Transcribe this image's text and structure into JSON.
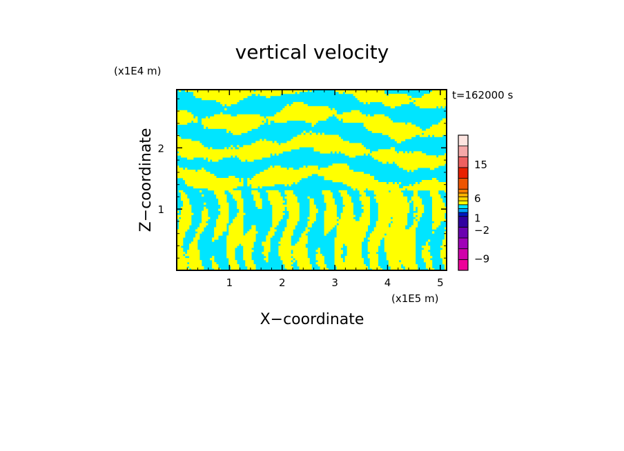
{
  "chart_data": {
    "type": "heatmap",
    "title": "vertical velocity",
    "xlabel": "X−coordinate",
    "ylabel": "Z−coordinate",
    "x_scale_label": "(x1E5 m)",
    "y_scale_label": "(x1E4 m)",
    "time_label": "t=162000 s",
    "xlim": [
      0,
      5.12
    ],
    "ylim": [
      0,
      2.95
    ],
    "x_ticks": [
      {
        "value": 1,
        "label": "1"
      },
      {
        "value": 2,
        "label": "2"
      },
      {
        "value": 3,
        "label": "3"
      },
      {
        "value": 4,
        "label": "4"
      },
      {
        "value": 5,
        "label": "5"
      }
    ],
    "y_ticks": [
      {
        "value": 1,
        "label": "1"
      },
      {
        "value": 2,
        "label": "2"
      }
    ],
    "field_colors": {
      "positive": "#ffff00",
      "negative": "#00e5ff"
    },
    "colorbar": {
      "levels": [
        {
          "color": "#ee0099"
        },
        {
          "color": "#d000aa"
        },
        {
          "color": "#a000b8"
        },
        {
          "color": "#6a00b0"
        },
        {
          "color": "#3000a0"
        },
        {
          "color": "#0018c0"
        },
        {
          "color": "#00a0ff"
        },
        {
          "color": "#00e5ff"
        },
        {
          "color": "#ffff00"
        },
        {
          "color": "#ffd400"
        },
        {
          "color": "#ffb000"
        },
        {
          "color": "#ff8000"
        },
        {
          "color": "#ee5500"
        },
        {
          "color": "#e82000"
        },
        {
          "color": "#ee6060"
        },
        {
          "color": "#f5a8a8"
        },
        {
          "color": "#fde4e0"
        }
      ],
      "labels": [
        {
          "text": "−9",
          "pos": 0.085
        },
        {
          "text": "−2",
          "pos": 0.295
        },
        {
          "text": "1",
          "pos": 0.385
        },
        {
          "text": "6",
          "pos": 0.53
        },
        {
          "text": "15",
          "pos": 0.78
        }
      ]
    }
  }
}
